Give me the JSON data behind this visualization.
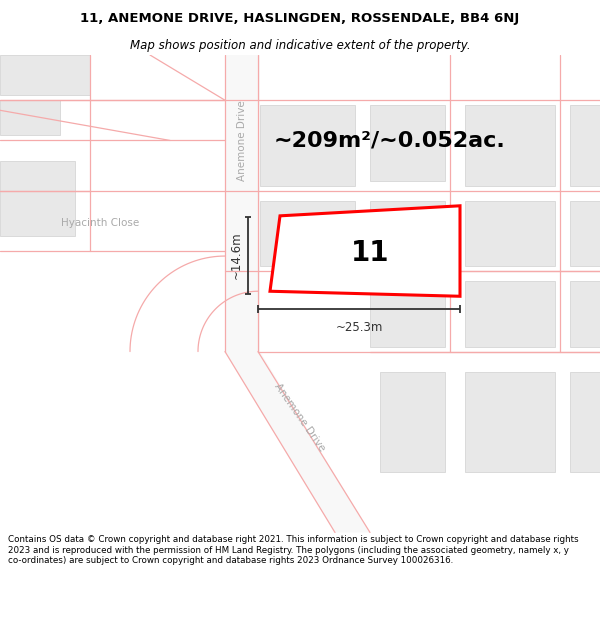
{
  "title_line1": "11, ANEMONE DRIVE, HASLINGDEN, ROSSENDALE, BB4 6NJ",
  "title_line2": "Map shows position and indicative extent of the property.",
  "footer_text": "Contains OS data © Crown copyright and database right 2021. This information is subject to Crown copyright and database rights 2023 and is reproduced with the permission of HM Land Registry. The polygons (including the associated geometry, namely x, y co-ordinates) are subject to Crown copyright and database rights 2023 Ordnance Survey 100026316.",
  "area_label": "~209m²/~0.052ac.",
  "width_label": "~25.3m",
  "height_label": "~14.6m",
  "number_label": "11",
  "map_bg": "#ffffff",
  "building_fill": "#e8e8e8",
  "building_edge": "#d0d0d0",
  "road_fill": "#f0f0f0",
  "road_line_color": "#f5aaaa",
  "plot_outline_color": "#ff0000",
  "dim_color": "#333333",
  "label_color": "#aaaaaa",
  "title_bg": "#ffffff",
  "footer_bg": "#ffffff",
  "title_fontsize": 9.5,
  "subtitle_fontsize": 8.5,
  "footer_fontsize": 6.3,
  "area_fontsize": 16,
  "number_fontsize": 20,
  "dim_fontsize": 8.5,
  "road_label_fontsize": 7.5
}
